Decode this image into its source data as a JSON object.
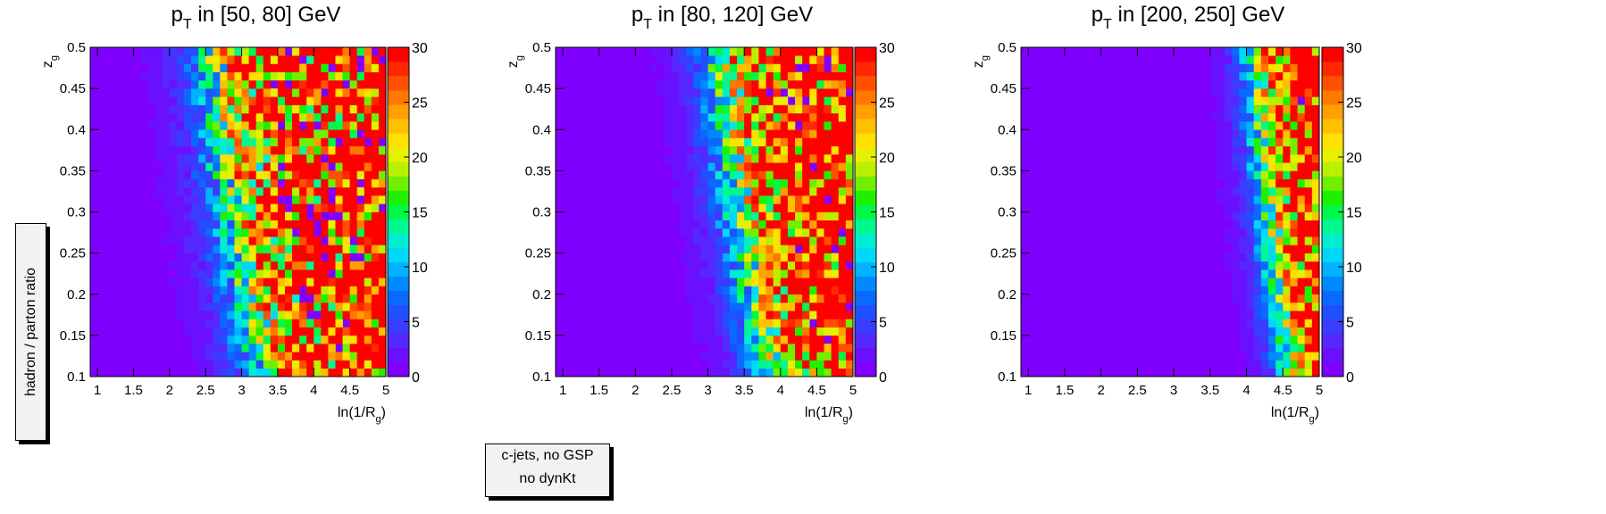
{
  "side_label": "hadron / parton ratio",
  "legend": {
    "line1": "c-jets, no GSP",
    "line2": "no dynKt"
  },
  "chart_data": [
    {
      "type": "heatmap",
      "title_main": "p",
      "title_sub": "T",
      "title_rest": " in [50, 80] GeV",
      "xlabel": "ln(1/R",
      "xlabel_sub": "g",
      "xlabel_close": ")",
      "ylabel": "z",
      "ylabel_sub": "g",
      "xlim": [
        0.9,
        5.0
      ],
      "ylim": [
        0.1,
        0.5
      ],
      "zlim": [
        0,
        30
      ],
      "x_ticks": [
        "1",
        "1.5",
        "2",
        "2.5",
        "3",
        "3.5",
        "4",
        "4.5",
        "5"
      ],
      "y_ticks": [
        "0.1",
        "0.15",
        "0.2",
        "0.25",
        "0.3",
        "0.35",
        "0.4",
        "0.45",
        "0.5"
      ],
      "z_ticks": [
        "0",
        "5",
        "10",
        "15",
        "20",
        "25",
        "30"
      ],
      "nx": 41,
      "ny": 40,
      "edge_low": 3.4,
      "edge_high": 2.6,
      "width": 1.1,
      "noise": 0.55,
      "missing": 0.09
    },
    {
      "type": "heatmap",
      "title_main": "p",
      "title_sub": "T",
      "title_rest": " in [80, 120] GeV",
      "xlabel": "ln(1/R",
      "xlabel_sub": "g",
      "xlabel_close": ")",
      "ylabel": "z",
      "ylabel_sub": "g",
      "xlim": [
        0.9,
        5.0
      ],
      "ylim": [
        0.1,
        0.5
      ],
      "zlim": [
        0,
        30
      ],
      "x_ticks": [
        "1",
        "1.5",
        "2",
        "2.5",
        "3",
        "3.5",
        "4",
        "4.5",
        "5"
      ],
      "y_ticks": [
        "0.1",
        "0.15",
        "0.2",
        "0.25",
        "0.3",
        "0.35",
        "0.4",
        "0.45",
        "0.5"
      ],
      "z_ticks": [
        "0",
        "5",
        "10",
        "15",
        "20",
        "25",
        "30"
      ],
      "nx": 41,
      "ny": 40,
      "edge_low": 3.95,
      "edge_high": 3.15,
      "width": 1.0,
      "noise": 0.5,
      "missing": 0.05
    },
    {
      "type": "heatmap",
      "title_main": "p",
      "title_sub": "T",
      "title_rest": " in [200, 250] GeV",
      "xlabel": "ln(1/R",
      "xlabel_sub": "g",
      "xlabel_close": ")",
      "ylabel": "z",
      "ylabel_sub": "g",
      "xlim": [
        0.9,
        5.0
      ],
      "ylim": [
        0.1,
        0.5
      ],
      "zlim": [
        0,
        30
      ],
      "x_ticks": [
        "1",
        "1.5",
        "2",
        "2.5",
        "3",
        "3.5",
        "4",
        "4.5",
        "5"
      ],
      "y_ticks": [
        "0.1",
        "0.15",
        "0.2",
        "0.25",
        "0.3",
        "0.35",
        "0.4",
        "0.45",
        "0.5"
      ],
      "z_ticks": [
        "0",
        "5",
        "10",
        "15",
        "20",
        "25",
        "30"
      ],
      "nx": 41,
      "ny": 40,
      "edge_low": 4.65,
      "edge_high": 4.1,
      "width": 0.7,
      "noise": 0.45,
      "missing": 0.02
    }
  ],
  "palette": [
    "#7f00ff",
    "#6a10ff",
    "#5528ff",
    "#3a3cff",
    "#2050ff",
    "#0a6aff",
    "#008aff",
    "#00b2ff",
    "#00d8f8",
    "#00eed0",
    "#00f890",
    "#00f848",
    "#20f000",
    "#70f000",
    "#b8f000",
    "#e8f000",
    "#ffe000",
    "#ffc000",
    "#ffa000",
    "#ff7800",
    "#ff5000",
    "#ff2800",
    "#ff0000"
  ]
}
